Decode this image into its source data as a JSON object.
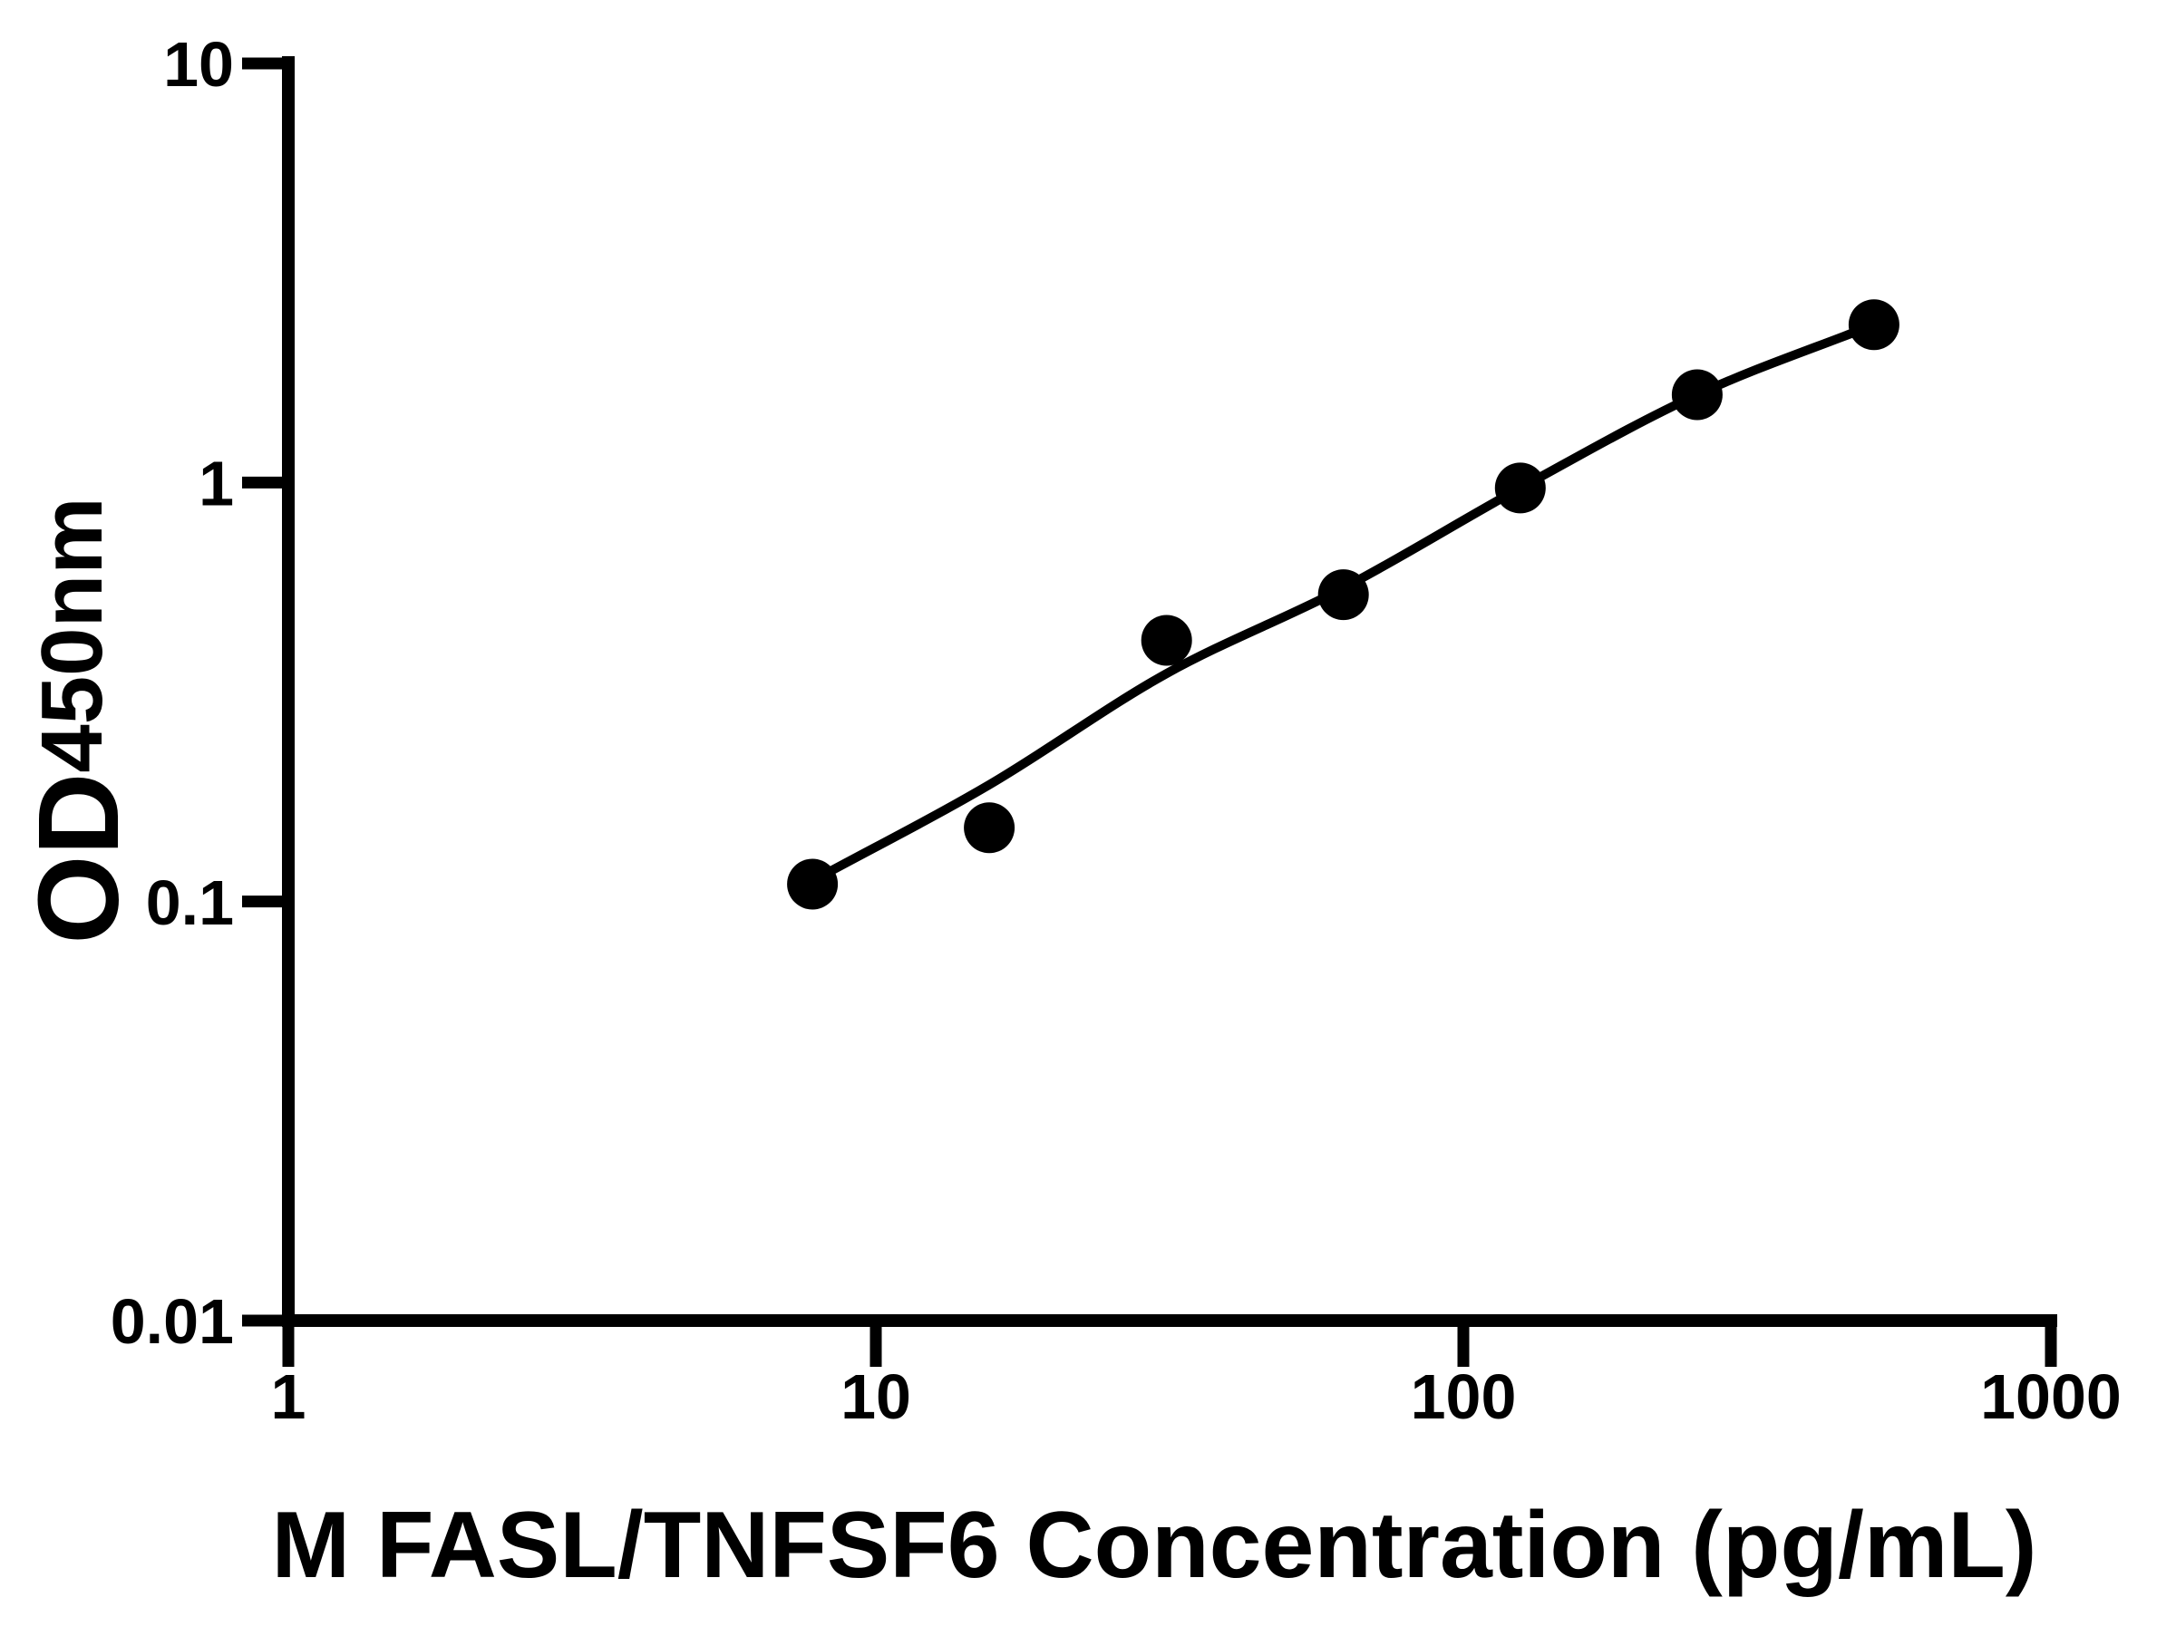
{
  "figure": {
    "background_color": "#ffffff",
    "axis_color": "#000000"
  },
  "chart_data": {
    "type": "scatter",
    "title": "",
    "xlabel": "M FASL/TNFSF6 Concentration (pg/mL)",
    "ylabel": "OD",
    "ylabel_subscript": "450nm",
    "x_scale": "log",
    "y_scale": "log",
    "xlim": [
      1,
      1000
    ],
    "ylim": [
      0.01,
      10
    ],
    "grid": "off",
    "legend": "none",
    "x_ticks": [
      {
        "value": 1,
        "label": "1"
      },
      {
        "value": 10,
        "label": "10"
      },
      {
        "value": 100,
        "label": "100"
      },
      {
        "value": 1000,
        "label": "1000"
      }
    ],
    "y_ticks": [
      {
        "value": 0.01,
        "label": "0.01"
      },
      {
        "value": 0.1,
        "label": "0.1"
      },
      {
        "value": 1,
        "label": "1"
      },
      {
        "value": 10,
        "label": "10"
      }
    ],
    "series": [
      {
        "name": "standard-curve-points",
        "marker": "circle",
        "marker_color": "#000000",
        "points": [
          {
            "x": 7.8,
            "y": 0.11
          },
          {
            "x": 15.6,
            "y": 0.15
          },
          {
            "x": 31.25,
            "y": 0.42
          },
          {
            "x": 62.5,
            "y": 0.54
          },
          {
            "x": 125,
            "y": 0.97
          },
          {
            "x": 250,
            "y": 1.62
          },
          {
            "x": 500,
            "y": 2.38
          }
        ]
      }
    ],
    "fit_curve": {
      "name": "fitted-line",
      "line_color": "#000000",
      "anchors": [
        {
          "x": 7.8,
          "y": 0.112
        },
        {
          "x": 15.6,
          "y": 0.19
        },
        {
          "x": 31.25,
          "y": 0.35
        },
        {
          "x": 62.5,
          "y": 0.56
        },
        {
          "x": 125,
          "y": 0.97
        },
        {
          "x": 250,
          "y": 1.62
        },
        {
          "x": 500,
          "y": 2.38
        }
      ]
    }
  }
}
